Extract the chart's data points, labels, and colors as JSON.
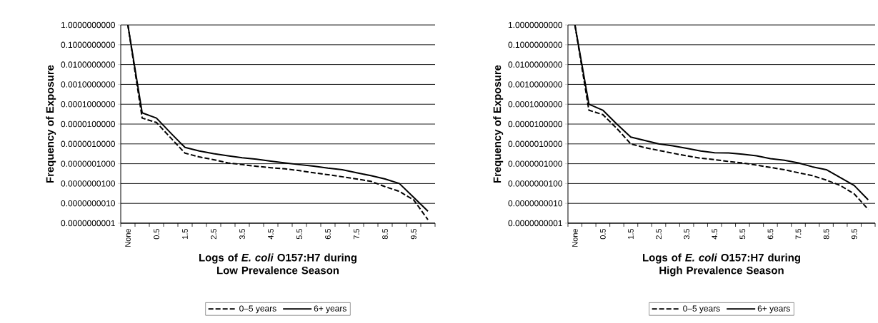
{
  "chart_data": [
    {
      "type": "line",
      "xlabel": "Logs of *E. coli* O157:H7 during Low Prevalence Season",
      "ylabel": "Frequency of Exposure",
      "categories": [
        "None",
        null,
        "0.5",
        null,
        "1.5",
        null,
        "2.5",
        null,
        "3.5",
        null,
        "4.5",
        null,
        "5.5",
        null,
        "6.5",
        null,
        "7.5",
        null,
        "8.5",
        null,
        "9.5",
        null
      ],
      "series": [
        {
          "name": "0–5 years",
          "color": "#000000",
          "line_style": "dashed",
          "values": [
            1,
            2e-05,
            1.2e-05,
            2e-06,
            3.4e-07,
            2.2e-07,
            1.6e-07,
            1.1e-07,
            9e-08,
            7.4e-08,
            6.3e-08,
            5.5e-08,
            4.5e-08,
            3.5e-08,
            2.8e-08,
            2.2e-08,
            1.7e-08,
            1.3e-08,
            7e-09,
            4e-09,
            1.5e-09,
            1.5e-10
          ]
        },
        {
          "name": "6+ years",
          "color": "#000000",
          "line_style": "solid",
          "values": [
            1,
            3.7e-05,
            2e-05,
            3.5e-06,
            6.6e-07,
            4.4e-07,
            3.2e-07,
            2.5e-07,
            2e-07,
            1.7e-07,
            1.35e-07,
            1.1e-07,
            9e-08,
            7.5e-08,
            6e-08,
            5e-08,
            3.5e-08,
            2.5e-08,
            1.7e-08,
            1e-08,
            2e-09,
            4e-10
          ]
        }
      ],
      "log": "y",
      "ylim": [
        1e-10,
        1
      ],
      "yticks": [
        {
          "value": 1e-10,
          "label": "0.0000000001"
        },
        {
          "value": 1e-09,
          "label": "0.0000000010"
        },
        {
          "value": 1e-08,
          "label": "0.0000000100"
        },
        {
          "value": 1e-07,
          "label": "0.0000001000"
        },
        {
          "value": 1e-06,
          "label": "0.0000010000"
        },
        {
          "value": 1e-05,
          "label": "0.0000100000"
        },
        {
          "value": 0.0001,
          "label": "0.0001000000"
        },
        {
          "value": 0.001,
          "label": "0.0010000000"
        },
        {
          "value": 0.01,
          "label": "0.0100000000"
        },
        {
          "value": 0.1,
          "label": "0.1000000000"
        },
        {
          "value": 1,
          "label": "1.0000000000"
        }
      ],
      "grid": "y",
      "legend": "bottom"
    },
    {
      "type": "line",
      "xlabel": "Logs of *E. coli* O157:H7 during High Prevalence Season",
      "ylabel": "Frequency of Exposure",
      "categories": [
        "None",
        null,
        "0.5",
        null,
        "1.5",
        null,
        "2.5",
        null,
        "3.5",
        null,
        "4.5",
        null,
        "5.5",
        null,
        "6.5",
        null,
        "7.5",
        null,
        "8.5",
        null,
        "9.5",
        null
      ],
      "series": [
        {
          "name": "0–5 years",
          "color": "#000000",
          "line_style": "dashed",
          "values": [
            1,
            5e-05,
            3e-05,
            6e-06,
            1e-06,
            6.5e-07,
            4.7e-07,
            3.4e-07,
            2.5e-07,
            1.9e-07,
            1.6e-07,
            1.3e-07,
            1.1e-07,
            8.5e-08,
            6.5e-08,
            5e-08,
            3.5e-08,
            2.5e-08,
            1.5e-08,
            8e-09,
            3e-09,
            5e-10
          ]
        },
        {
          "name": "6+ years",
          "color": "#000000",
          "line_style": "solid",
          "values": [
            1,
            0.0001,
            5e-05,
            1e-05,
            2.2e-06,
            1.5e-06,
            1e-06,
            8e-07,
            6e-07,
            4.4e-07,
            3.6e-07,
            3.5e-07,
            3e-07,
            2.5e-07,
            1.8e-07,
            1.5e-07,
            1.1e-07,
            7e-08,
            5e-08,
            2e-08,
            8e-09,
            1.5e-09
          ]
        }
      ],
      "log": "y",
      "ylim": [
        1e-10,
        1
      ],
      "yticks": [
        {
          "value": 1e-10,
          "label": "0.0000000001"
        },
        {
          "value": 1e-09,
          "label": "0.0000000010"
        },
        {
          "value": 1e-08,
          "label": "0.0000000100"
        },
        {
          "value": 1e-07,
          "label": "0.0000001000"
        },
        {
          "value": 1e-06,
          "label": "0.0000010000"
        },
        {
          "value": 1e-05,
          "label": "0.0000100000"
        },
        {
          "value": 0.0001,
          "label": "0.0001000000"
        },
        {
          "value": 0.001,
          "label": "0.0010000000"
        },
        {
          "value": 0.01,
          "label": "0.0100000000"
        },
        {
          "value": 0.1,
          "label": "0.1000000000"
        },
        {
          "value": 1,
          "label": "1.0000000000"
        }
      ],
      "grid": "y",
      "legend": "bottom"
    }
  ]
}
